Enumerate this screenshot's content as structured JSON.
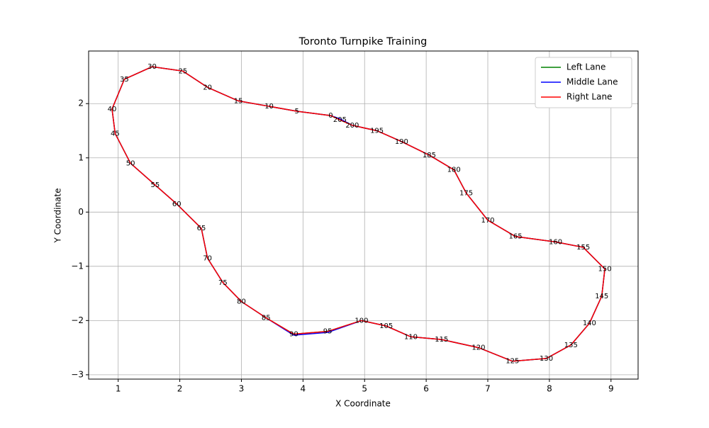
{
  "chart_data": {
    "type": "line",
    "title": "Toronto Turnpike Training",
    "x_label": "X Coordinate",
    "y_label": "Y Coordinate",
    "xlim": [
      0.52,
      9.44
    ],
    "ylim": [
      -3.08,
      2.97
    ],
    "xticks": [
      1,
      2,
      3,
      4,
      5,
      6,
      7,
      8,
      9
    ],
    "yticks": [
      {
        "value": -3,
        "label": "−3"
      },
      {
        "value": -2,
        "label": "−2"
      },
      {
        "value": -1,
        "label": "−1"
      },
      0,
      1,
      2
    ],
    "grid": true,
    "legend": "upper right",
    "waypoint_labels": [
      0,
      5,
      10,
      15,
      20,
      25,
      30,
      35,
      40,
      45,
      50,
      55,
      60,
      65,
      70,
      75,
      80,
      85,
      90,
      95,
      100,
      105,
      110,
      115,
      120,
      125,
      130,
      135,
      140,
      145,
      150,
      155,
      160,
      165,
      170,
      175,
      180,
      185,
      190,
      195,
      200,
      205
    ],
    "series": [
      {
        "name": "Left Lane",
        "color": "#008000",
        "x": [
          4.45,
          3.9,
          3.45,
          2.95,
          2.45,
          2.05,
          1.55,
          1.1,
          0.9,
          0.95,
          1.2,
          1.6,
          1.95,
          2.35,
          2.45,
          2.7,
          3.0,
          3.4,
          3.85,
          4.4,
          4.95,
          5.35,
          5.75,
          6.25,
          6.85,
          7.4,
          7.95,
          8.35,
          8.65,
          8.85,
          8.9,
          8.55,
          8.1,
          7.45,
          7.0,
          6.65,
          6.45,
          6.05,
          5.6,
          5.2,
          4.8,
          4.6,
          4.45
        ],
        "values": [
          1.78,
          1.86,
          1.95,
          2.05,
          2.3,
          2.6,
          2.68,
          2.45,
          1.9,
          1.45,
          0.9,
          0.5,
          0.15,
          -0.3,
          -0.85,
          -1.3,
          -1.65,
          -1.95,
          -2.25,
          -2.2,
          -2.0,
          -2.1,
          -2.3,
          -2.35,
          -2.5,
          -2.75,
          -2.7,
          -2.45,
          -2.05,
          -1.55,
          -1.05,
          -0.65,
          -0.55,
          -0.45,
          -0.15,
          0.35,
          0.78,
          1.05,
          1.3,
          1.5,
          1.6,
          1.7,
          1.78
        ]
      },
      {
        "name": "Middle Lane",
        "color": "#0000ff",
        "x": [
          4.45,
          3.9,
          3.45,
          2.95,
          2.45,
          2.05,
          1.55,
          1.1,
          0.9,
          0.95,
          1.2,
          1.6,
          1.95,
          2.35,
          2.45,
          2.7,
          3.0,
          3.4,
          3.85,
          4.4,
          4.95,
          5.35,
          5.75,
          6.25,
          6.85,
          7.4,
          7.95,
          8.35,
          8.65,
          8.85,
          8.9,
          8.55,
          8.1,
          7.45,
          7.0,
          6.65,
          6.45,
          6.05,
          5.6,
          5.2,
          4.8,
          4.6,
          4.45
        ],
        "values": [
          1.78,
          1.86,
          1.95,
          2.05,
          2.3,
          2.6,
          2.68,
          2.45,
          1.9,
          1.45,
          0.9,
          0.5,
          0.15,
          -0.3,
          -0.85,
          -1.3,
          -1.65,
          -1.95,
          -2.27,
          -2.22,
          -2.0,
          -2.1,
          -2.3,
          -2.35,
          -2.5,
          -2.75,
          -2.7,
          -2.45,
          -2.05,
          -1.55,
          -1.05,
          -0.65,
          -0.55,
          -0.45,
          -0.15,
          0.35,
          0.78,
          1.05,
          1.3,
          1.5,
          1.6,
          1.72,
          1.78
        ]
      },
      {
        "name": "Right Lane",
        "color": "#ff0000",
        "x": [
          4.45,
          3.9,
          3.45,
          2.95,
          2.45,
          2.05,
          1.55,
          1.1,
          0.9,
          0.95,
          1.2,
          1.6,
          1.95,
          2.35,
          2.45,
          2.7,
          3.0,
          3.4,
          3.85,
          4.4,
          4.95,
          5.35,
          5.75,
          6.25,
          6.85,
          7.4,
          7.95,
          8.35,
          8.65,
          8.85,
          8.9,
          8.55,
          8.1,
          7.45,
          7.0,
          6.65,
          6.45,
          6.05,
          5.6,
          5.2,
          4.8,
          4.6,
          4.45
        ],
        "values": [
          1.78,
          1.86,
          1.95,
          2.05,
          2.3,
          2.6,
          2.68,
          2.45,
          1.9,
          1.45,
          0.9,
          0.5,
          0.15,
          -0.3,
          -0.85,
          -1.3,
          -1.65,
          -1.95,
          -2.25,
          -2.2,
          -2.0,
          -2.1,
          -2.3,
          -2.35,
          -2.5,
          -2.75,
          -2.7,
          -2.45,
          -2.05,
          -1.55,
          -1.05,
          -0.65,
          -0.55,
          -0.45,
          -0.15,
          0.35,
          0.78,
          1.05,
          1.3,
          1.5,
          1.6,
          1.7,
          1.78
        ]
      }
    ]
  }
}
